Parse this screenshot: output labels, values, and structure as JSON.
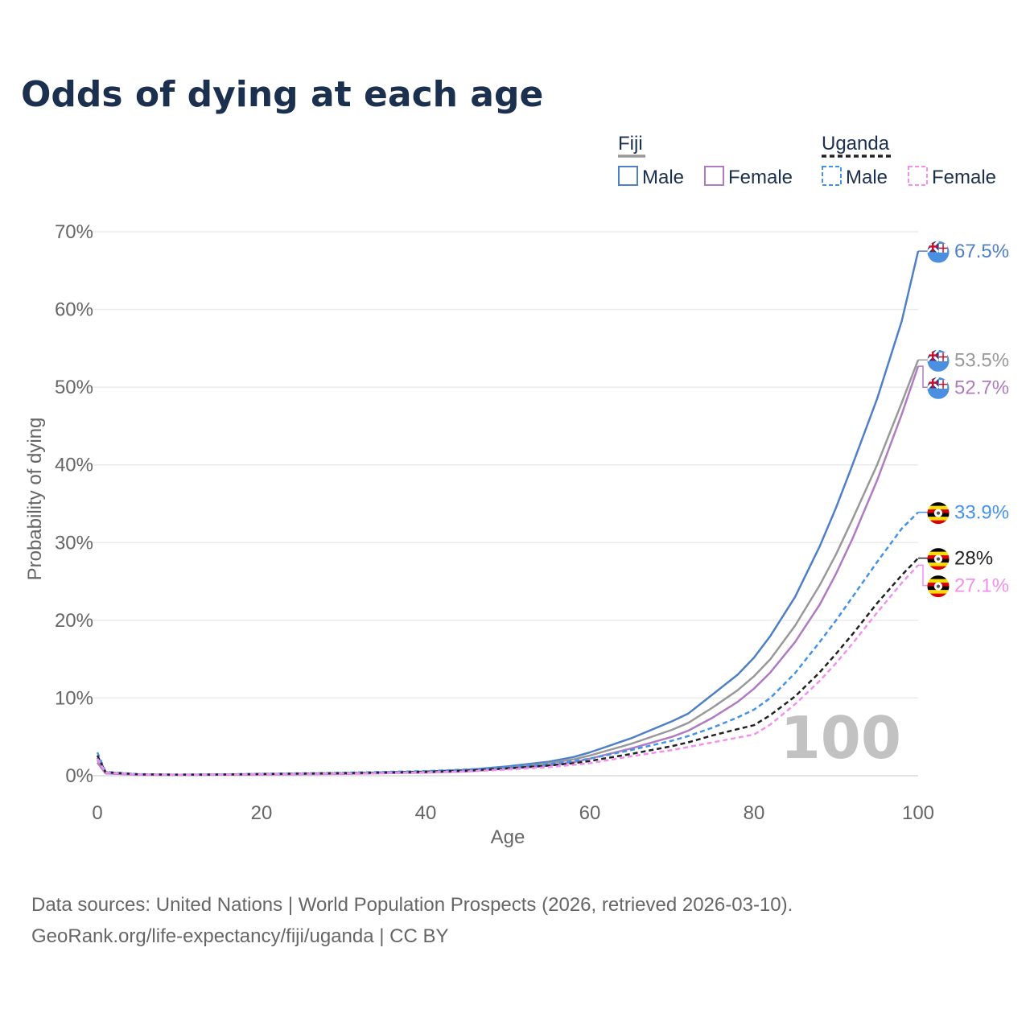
{
  "chart_data": {
    "type": "line",
    "title": "Odds of dying at each age",
    "xlabel": "Age",
    "ylabel": "Probability of dying",
    "xlim": [
      0,
      100
    ],
    "ylim": [
      0,
      70
    ],
    "x_ticks": [
      "0",
      "20",
      "40",
      "60",
      "80",
      "100"
    ],
    "y_ticks": [
      "0%",
      "10%",
      "20%",
      "30%",
      "40%",
      "50%",
      "60%",
      "70%"
    ],
    "watermark": "100",
    "legend": {
      "groups": [
        {
          "name": "Fiji",
          "line_color": "#999999",
          "dashed": false,
          "entries": [
            {
              "label": "Male",
              "color": "#4e7fc7"
            },
            {
              "label": "Female",
              "color": "#b07bc1"
            }
          ]
        },
        {
          "name": "Uganda",
          "line_color": "#222222",
          "dashed": true,
          "entries": [
            {
              "label": "Male",
              "color": "#4493e8"
            },
            {
              "label": "Female",
              "color": "#f48ff0"
            }
          ]
        }
      ]
    },
    "x": [
      0,
      1,
      5,
      10,
      15,
      20,
      30,
      40,
      45,
      50,
      55,
      58,
      60,
      65,
      70,
      72,
      75,
      78,
      80,
      82,
      85,
      88,
      90,
      92,
      95,
      98,
      100
    ],
    "series": [
      {
        "name": "Fiji Male",
        "country": "Fiji",
        "color": "#4e7fc7",
        "dashed": false,
        "end_label": "67.5%",
        "values": [
          2.3,
          0.4,
          0.15,
          0.12,
          0.15,
          0.2,
          0.3,
          0.55,
          0.75,
          1.2,
          1.8,
          2.4,
          3.0,
          4.8,
          7.0,
          8.0,
          10.5,
          13.0,
          15.2,
          18.0,
          23.0,
          29.5,
          34.5,
          40.0,
          48.5,
          58.5,
          67.5
        ]
      },
      {
        "name": "Fiji Both sexes",
        "country": "Fiji",
        "color": "#999999",
        "dashed": false,
        "end_label": "53.5%",
        "values": [
          2.0,
          0.35,
          0.13,
          0.11,
          0.13,
          0.18,
          0.27,
          0.48,
          0.65,
          1.05,
          1.6,
          2.1,
          2.6,
          4.1,
          5.9,
          6.8,
          8.8,
          11.0,
          12.8,
          15.0,
          19.3,
          24.5,
          28.5,
          33.0,
          40.0,
          48.0,
          53.5
        ]
      },
      {
        "name": "Fiji Female",
        "country": "Fiji",
        "color": "#b07bc1",
        "dashed": false,
        "end_label": "52.7%",
        "values": [
          1.7,
          0.3,
          0.11,
          0.1,
          0.12,
          0.15,
          0.23,
          0.4,
          0.55,
          0.9,
          1.3,
          1.75,
          2.2,
          3.5,
          5.0,
          5.8,
          7.5,
          9.5,
          11.2,
          13.3,
          17.2,
          22.0,
          26.0,
          30.5,
          38.0,
          46.5,
          52.7
        ]
      },
      {
        "name": "Uganda Male",
        "country": "Uganda",
        "color": "#4493e8",
        "dashed": true,
        "end_label": "33.9%",
        "values": [
          3.0,
          0.5,
          0.2,
          0.15,
          0.18,
          0.25,
          0.38,
          0.6,
          0.8,
          1.1,
          1.5,
          1.9,
          2.2,
          3.3,
          4.5,
          5.1,
          6.2,
          7.5,
          8.5,
          10.0,
          13.2,
          17.2,
          20.0,
          23.0,
          27.5,
          31.8,
          33.9
        ]
      },
      {
        "name": "Uganda Both sexes",
        "country": "Uganda",
        "color": "#222222",
        "dashed": true,
        "end_label": "28%",
        "values": [
          2.6,
          0.45,
          0.18,
          0.13,
          0.16,
          0.22,
          0.33,
          0.5,
          0.65,
          0.95,
          1.3,
          1.6,
          1.9,
          2.8,
          3.8,
          4.3,
          5.2,
          6.0,
          6.5,
          7.8,
          10.2,
          13.3,
          15.7,
          18.2,
          22.2,
          25.8,
          28.0
        ]
      },
      {
        "name": "Uganda Female",
        "country": "Uganda",
        "color": "#f48ff0",
        "dashed": true,
        "end_label": "27.1%",
        "values": [
          2.2,
          0.4,
          0.16,
          0.12,
          0.14,
          0.19,
          0.28,
          0.42,
          0.55,
          0.8,
          1.1,
          1.4,
          1.6,
          2.5,
          3.3,
          3.7,
          4.3,
          4.9,
          5.3,
          6.6,
          9.2,
          12.2,
          14.5,
          17.0,
          21.0,
          24.8,
          27.1
        ]
      }
    ],
    "sources": [
      "Data sources: United Nations | World Population Prospects (2026, retrieved 2026-03-10).",
      "GeoRank.org/life-expectancy/fiji/uganda | CC BY"
    ]
  }
}
